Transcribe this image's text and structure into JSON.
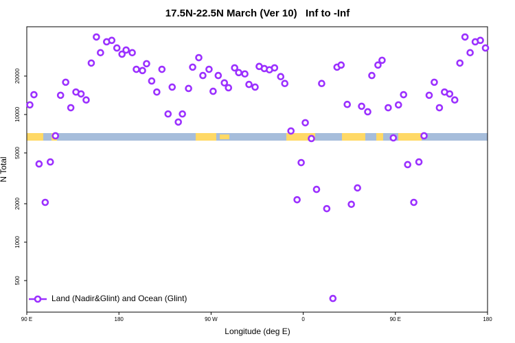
{
  "chart_data": {
    "type": "scatter",
    "title": "17.5N-22.5N March (Ver 10)   Inf to -Inf",
    "x_label": "Longitude (deg E)",
    "y_label": "N Total",
    "log_y": true,
    "xlim": [
      90,
      540
    ],
    "ylim": [
      283,
      48700
    ],
    "xticks": [
      {
        "value": 90,
        "label": "90 E"
      },
      180,
      {
        "value": 270,
        "label": "90 W"
      },
      {
        "value": 360,
        "label": "0"
      },
      {
        "value": 450,
        "label": "90 E"
      },
      {
        "value": 540,
        "label": "180"
      }
    ],
    "yticks": [
      500,
      1000,
      2000,
      5000,
      10000,
      20000
    ],
    "legend": "bottom-left",
    "series": [
      {
        "name": "Land (Nadir&Glint) and Ocean (Glint)",
        "color": "#9b30ff",
        "x": [
          93,
          97,
          102,
          108,
          113,
          118,
          123,
          128,
          133,
          138,
          143,
          148,
          153,
          158,
          162,
          168,
          173,
          178,
          183,
          187,
          193,
          197,
          203,
          207,
          212,
          217,
          222,
          228,
          232,
          238,
          242,
          248,
          252,
          258,
          262,
          268,
          272,
          277,
          283,
          287,
          293,
          297,
          303,
          307,
          313,
          317,
          322,
          327,
          332,
          338,
          342,
          348,
          354,
          358,
          362,
          368,
          373,
          378,
          383,
          389,
          393,
          397,
          403,
          407,
          413,
          417,
          423,
          427,
          433,
          437,
          443,
          448,
          453,
          458,
          462,
          468,
          473,
          478,
          483,
          488,
          493,
          498,
          503,
          508,
          513,
          518,
          523,
          528,
          533,
          538
        ],
        "values": [
          11900,
          14300,
          4100,
          2050,
          4250,
          6810,
          14150,
          17900,
          11300,
          15000,
          14500,
          13000,
          25300,
          40500,
          30500,
          37100,
          38100,
          33200,
          29700,
          32000,
          30500,
          22600,
          22100,
          25000,
          18300,
          15000,
          22600,
          10100,
          16400,
          8730,
          10100,
          16000,
          23500,
          27900,
          20200,
          22600,
          15200,
          20200,
          17700,
          16200,
          23200,
          21300,
          20800,
          17200,
          16400,
          23800,
          22900,
          22400,
          23200,
          19800,
          17500,
          7430,
          2150,
          4200,
          8620,
          6480,
          2590,
          17500,
          1830,
          362,
          23500,
          24400,
          12000,
          1980,
          2660,
          11600,
          10500,
          20200,
          24400,
          26600,
          11300,
          6560,
          11900,
          14300,
          4050,
          2050,
          4250,
          6810,
          14150,
          17900,
          11300,
          15000,
          14500,
          13000,
          25300,
          40500,
          30500,
          37100,
          38100,
          33200
        ]
      }
    ]
  }
}
